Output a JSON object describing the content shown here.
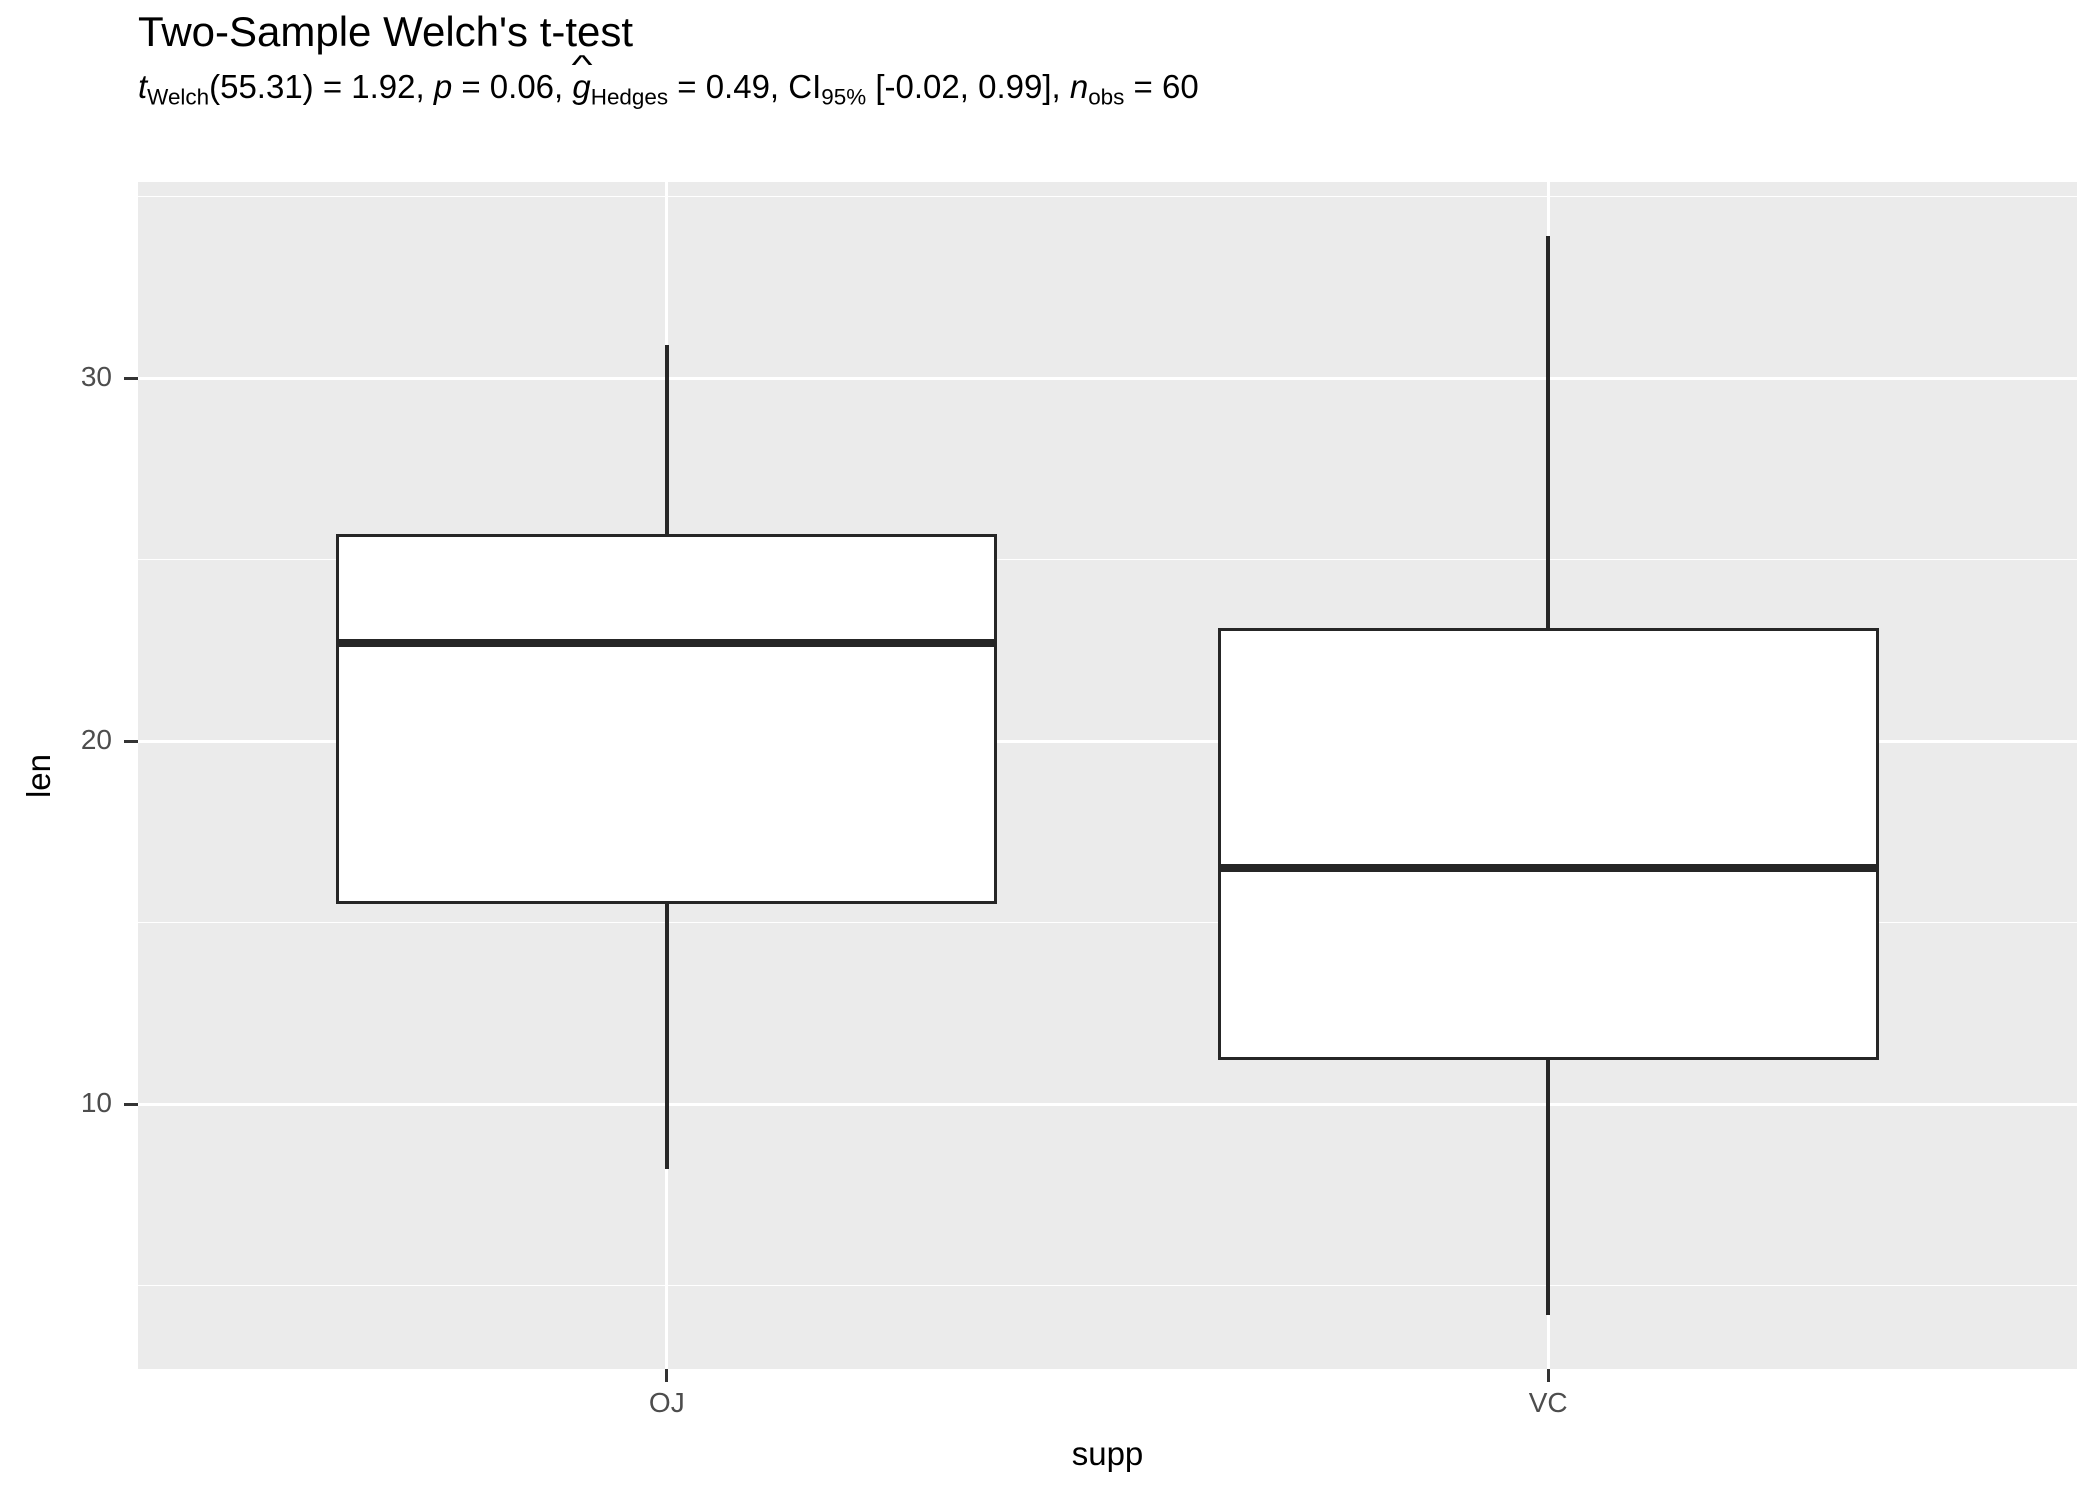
{
  "title": "Two-Sample Welch's t-test",
  "subtitle_segments": [
    {
      "type": "it",
      "text": "t"
    },
    {
      "type": "sub",
      "text": "Welch"
    },
    {
      "type": "norm",
      "text": "(55.31) = 1.92, "
    },
    {
      "type": "it",
      "text": "p"
    },
    {
      "type": "norm",
      "text": " = 0.06, "
    },
    {
      "type": "ghat",
      "text": "g",
      "hat": "^"
    },
    {
      "type": "sub",
      "text": "Hedges"
    },
    {
      "type": "norm",
      "text": " = 0.49, CI"
    },
    {
      "type": "sub",
      "text": "95%"
    },
    {
      "type": "norm",
      "text": " [-0.02, 0.99], "
    },
    {
      "type": "it",
      "text": "n"
    },
    {
      "type": "sub",
      "text": "obs"
    },
    {
      "type": "norm",
      "text": " = 60"
    }
  ],
  "chart_data": {
    "type": "boxplot",
    "title": "Two-Sample Welch's t-test",
    "subtitle": "t_Welch(55.31) = 1.92, p = 0.06, g^_Hedges = 0.49, CI_95% [-0.02, 0.99], n_obs = 60",
    "xlabel": "supp",
    "ylabel": "len",
    "categories": [
      "OJ",
      "VC"
    ],
    "series": [
      {
        "name": "OJ",
        "min": 8.2,
        "q1": 15.5,
        "median": 22.7,
        "q3": 25.7,
        "max": 30.9
      },
      {
        "name": "VC",
        "min": 4.2,
        "q1": 11.2,
        "median": 16.5,
        "q3": 23.1,
        "max": 33.9
      }
    ],
    "ylim": [
      2.7,
      35.4
    ],
    "y_major_ticks": [
      10,
      20,
      30
    ],
    "y_minor_gridlines": [
      5,
      15,
      25,
      35
    ],
    "grid": "white major+minor horizontal lines and vertical category lines on grey panel",
    "legend": "none"
  },
  "colors": {
    "panel_bg": "#EBEBEB",
    "gridline": "#FFFFFF",
    "box_stroke": "#262626",
    "box_fill": "#FFFFFF",
    "tick_label": "#4D4D4D",
    "tick_mark": "#333333",
    "text": "#000000"
  }
}
